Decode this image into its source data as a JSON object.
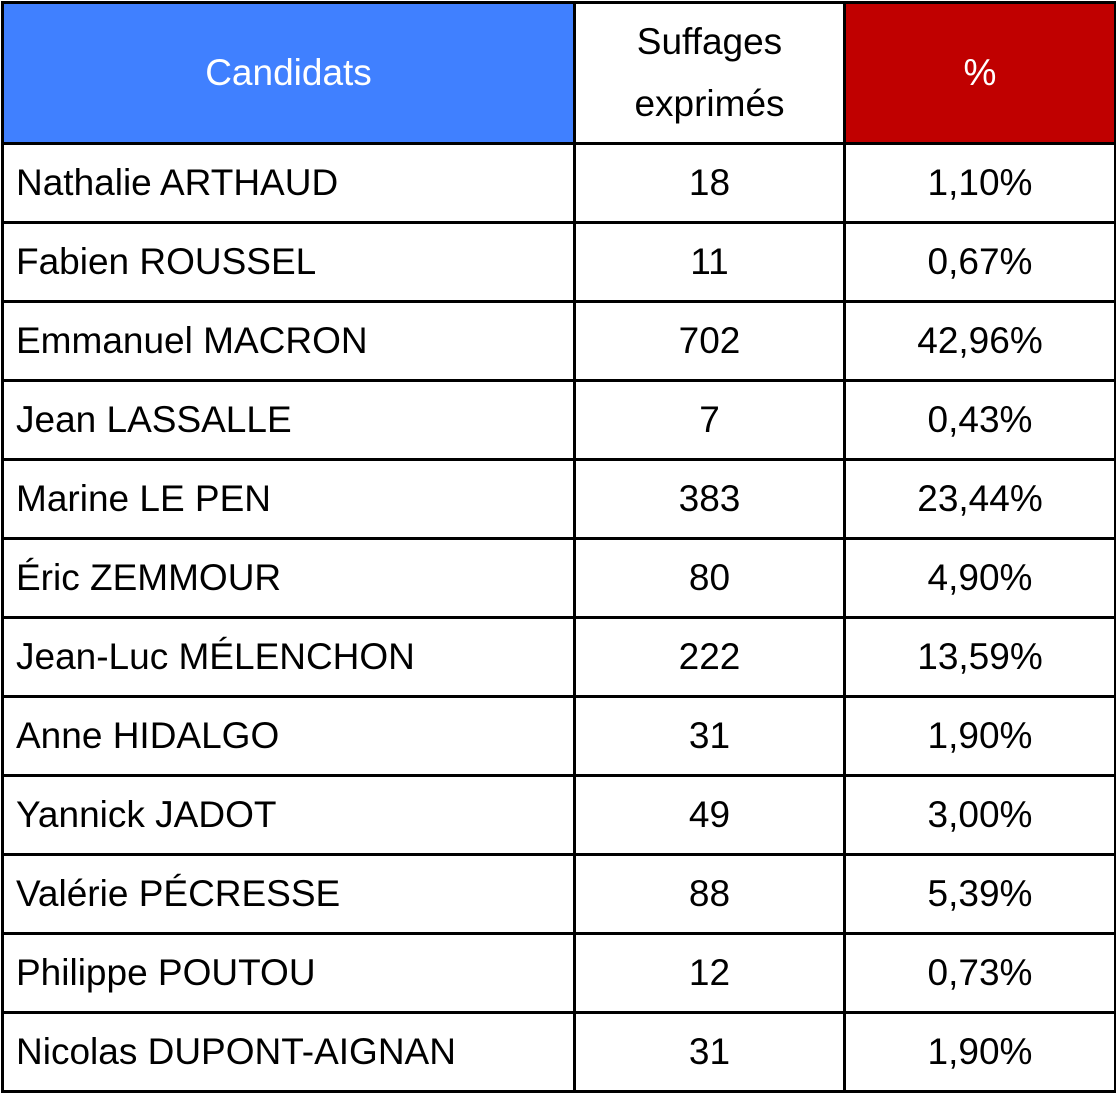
{
  "table": {
    "header": [
      "Candidats",
      "Suffages exprimés",
      "%"
    ],
    "rows": [
      [
        "Nathalie ARTHAUD",
        18,
        "1,10%"
      ],
      [
        "Fabien ROUSSEL",
        11,
        "0,67%"
      ],
      [
        "Emmanuel MACRON",
        702,
        "42,96%"
      ],
      [
        "Jean LASSALLE",
        7,
        "0,43%"
      ],
      [
        "Marine LE PEN",
        383,
        "23,44%"
      ],
      [
        "Éric ZEMMOUR",
        80,
        "4,90%"
      ],
      [
        "Jean-Luc MÉLENCHON",
        222,
        "13,59%"
      ],
      [
        "Anne HIDALGO",
        31,
        "1,90%"
      ],
      [
        "Yannick JADOT",
        49,
        "3,00%"
      ],
      [
        "Valérie PÉCRESSE",
        88,
        "5,39%"
      ],
      [
        "Philippe POUTOU",
        12,
        "0,73%"
      ],
      [
        "Nicolas DUPONT-AIGNAN",
        31,
        "1,90%"
      ]
    ]
  }
}
